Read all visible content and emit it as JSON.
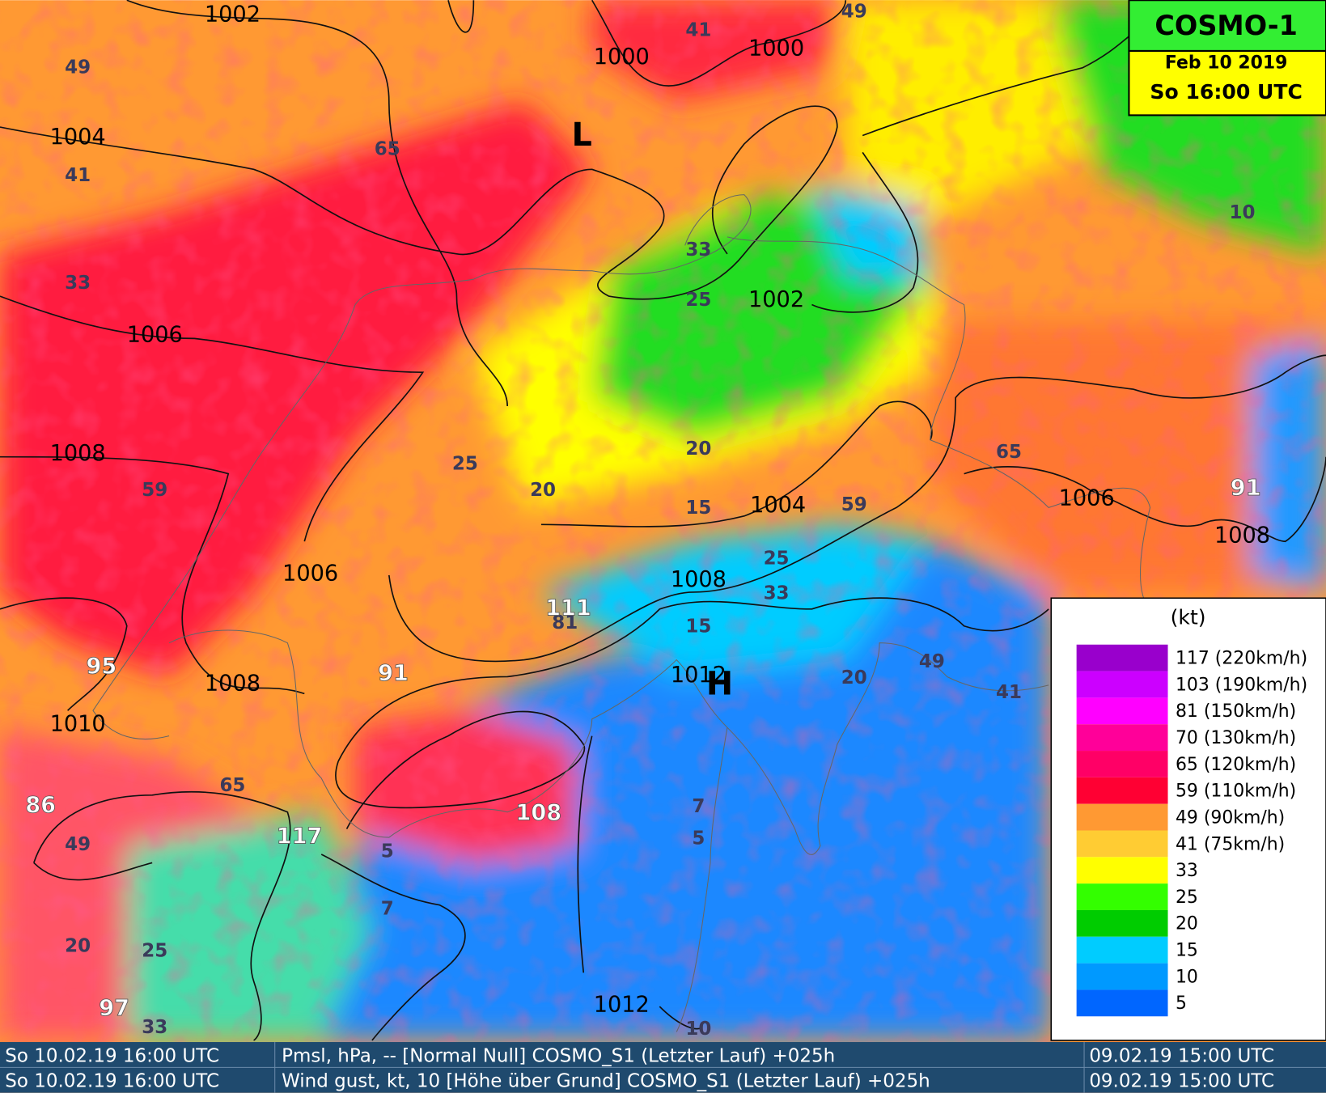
{
  "header": {
    "model": "COSMO-1",
    "date": "Feb 10 2019",
    "time": "So 16:00 UTC"
  },
  "legend": {
    "unit": "(kt)",
    "entries": [
      {
        "label": "117 (220km/h)",
        "color": "#9900cc"
      },
      {
        "label": "103 (190km/h)",
        "color": "#cc00ff"
      },
      {
        "label": "81 (150km/h)",
        "color": "#ff00ff"
      },
      {
        "label": "70 (130km/h)",
        "color": "#ff0099"
      },
      {
        "label": "65 (120km/h)",
        "color": "#ff0066"
      },
      {
        "label": "59 (110km/h)",
        "color": "#ff0033"
      },
      {
        "label": "49 (90km/h)",
        "color": "#ff9933"
      },
      {
        "label": "41 (75km/h)",
        "color": "#ffcc33"
      },
      {
        "label": "33",
        "color": "#ffff00"
      },
      {
        "label": "25",
        "color": "#33ff00"
      },
      {
        "label": "20",
        "color": "#00cc00"
      },
      {
        "label": "15",
        "color": "#00ccff"
      },
      {
        "label": "10",
        "color": "#0099ff"
      },
      {
        "label": "5",
        "color": "#0066ff"
      }
    ]
  },
  "map": {
    "pressure_labels": [
      "1002",
      "1000",
      "1000",
      "1004",
      "1006",
      "1002",
      "1008",
      "1006",
      "1004",
      "1008",
      "1006",
      "1008",
      "1008",
      "1012",
      "1010",
      "1012"
    ],
    "gust_labels": [
      "49",
      "49",
      "41",
      "65",
      "41",
      "33",
      "33",
      "25",
      "25",
      "20",
      "20",
      "15",
      "59",
      "59",
      "65",
      "25",
      "33",
      "15",
      "81",
      "20",
      "49",
      "41",
      "65",
      "49",
      "5",
      "7",
      "5",
      "7",
      "20",
      "25",
      "33",
      "10",
      "10"
    ],
    "gust_labels_strong": [
      "95",
      "91",
      "111",
      "108",
      "117",
      "86",
      "97",
      "91"
    ],
    "pressure_centers": [
      "L",
      "H"
    ]
  },
  "footer": {
    "rows": [
      [
        "So 10.02.19 16:00 UTC",
        "Pmsl, hPa, -- [Normal Null] COSMO_S1 (Letzter Lauf) +025h",
        "09.02.19 15:00 UTC"
      ],
      [
        "So 10.02.19 16:00 UTC",
        "Wind gust, kt, 10 [Höhe über Grund] COSMO_S1 (Letzter Lauf) +025h",
        "09.02.19 15:00 UTC"
      ]
    ]
  }
}
